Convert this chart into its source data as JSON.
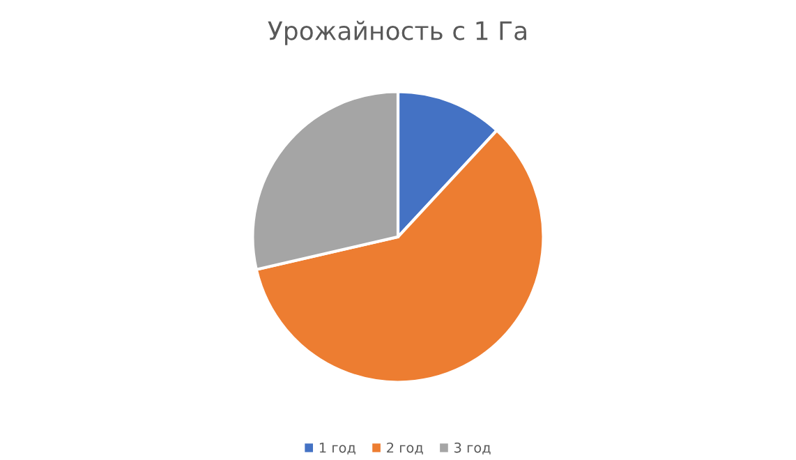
{
  "chart_data": {
    "type": "pie",
    "title": "Урожайность с 1 Га",
    "categories": [
      "1 год",
      "2 год",
      "3 год"
    ],
    "values": [
      11.9,
      59.5,
      28.6
    ],
    "colors": [
      "#4472c4",
      "#ed7d31",
      "#a5a5a5"
    ],
    "legend": "bottom"
  }
}
